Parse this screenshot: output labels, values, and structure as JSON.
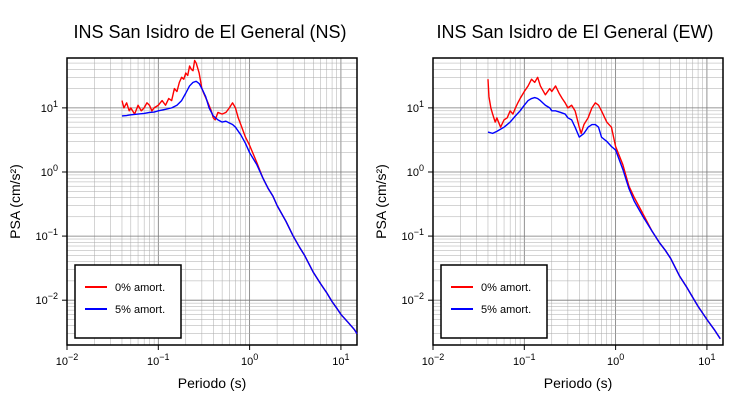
{
  "chart_data": [
    {
      "type": "line",
      "title": "INS San Isidro de El General (NS)",
      "xlabel": "Periodo (s)",
      "ylabel": "PSA (cm/s²)",
      "xscale": "log",
      "yscale": "log",
      "xlim": [
        0.01,
        15
      ],
      "ylim": [
        0.002,
        60
      ],
      "x_ticks": [
        0.01,
        0.1,
        1,
        10
      ],
      "y_ticks": [
        0.01,
        0.1,
        1,
        10
      ],
      "grid": true,
      "legend": "bottom-left",
      "series": [
        {
          "name": "0% amort.",
          "color": "#ff0000",
          "x": [
            0.04,
            0.042,
            0.045,
            0.048,
            0.05,
            0.055,
            0.06,
            0.065,
            0.07,
            0.075,
            0.08,
            0.085,
            0.09,
            0.1,
            0.11,
            0.12,
            0.13,
            0.14,
            0.15,
            0.16,
            0.17,
            0.18,
            0.19,
            0.2,
            0.21,
            0.22,
            0.23,
            0.24,
            0.25,
            0.26,
            0.28,
            0.3,
            0.32,
            0.35,
            0.38,
            0.4,
            0.42,
            0.45,
            0.5,
            0.55,
            0.6,
            0.65,
            0.7,
            0.75,
            0.8,
            0.9,
            1.0,
            1.2,
            1.4,
            1.6,
            1.8,
            2.0,
            2.5,
            3.0,
            3.5,
            4.0,
            5.0,
            6.0,
            7.0,
            8.0,
            9.0,
            10.0,
            12.0,
            14.0,
            15.0
          ],
          "values": [
            13,
            10,
            12,
            9,
            10,
            8,
            11,
            9,
            10,
            12,
            11,
            9,
            10,
            11,
            13,
            11,
            14,
            13,
            20,
            18,
            25,
            30,
            28,
            35,
            32,
            45,
            40,
            38,
            55,
            50,
            35,
            20,
            16,
            12,
            9,
            7,
            6.5,
            8.5,
            8,
            8.5,
            10,
            12,
            10,
            7,
            5.5,
            3.5,
            2.6,
            1.4,
            0.8,
            0.55,
            0.42,
            0.3,
            0.17,
            0.1,
            0.068,
            0.05,
            0.027,
            0.018,
            0.013,
            0.0095,
            0.0075,
            0.006,
            0.0045,
            0.0035,
            0.003
          ]
        },
        {
          "name": "5% amort.",
          "color": "#0000ff",
          "x": [
            0.04,
            0.045,
            0.05,
            0.06,
            0.07,
            0.08,
            0.09,
            0.1,
            0.12,
            0.14,
            0.16,
            0.18,
            0.2,
            0.22,
            0.24,
            0.26,
            0.28,
            0.3,
            0.33,
            0.36,
            0.4,
            0.45,
            0.5,
            0.55,
            0.6,
            0.65,
            0.7,
            0.8,
            0.9,
            1.0,
            1.2,
            1.4,
            1.6,
            1.8,
            2.0,
            2.5,
            3.0,
            3.5,
            4.0,
            5.0,
            6.0,
            7.0,
            8.0,
            9.0,
            10.0,
            12.0,
            14.0,
            15.0
          ],
          "values": [
            7.5,
            7.6,
            7.8,
            8,
            8.2,
            8.5,
            8.6,
            9,
            9.5,
            10,
            11,
            13,
            17,
            22,
            25,
            26,
            24,
            20,
            15,
            10,
            7.5,
            6.5,
            6,
            6.2,
            5.8,
            5.5,
            5,
            3.8,
            2.8,
            2.0,
            1.3,
            0.8,
            0.55,
            0.42,
            0.3,
            0.17,
            0.1,
            0.068,
            0.05,
            0.027,
            0.018,
            0.013,
            0.0095,
            0.0075,
            0.006,
            0.0045,
            0.0035,
            0.003
          ]
        }
      ]
    },
    {
      "type": "line",
      "title": "INS San Isidro de El General (EW)",
      "xlabel": "Periodo (s)",
      "ylabel": "PSA (cm/s²)",
      "xscale": "log",
      "yscale": "log",
      "xlim": [
        0.01,
        15
      ],
      "ylim": [
        0.002,
        60
      ],
      "x_ticks": [
        0.01,
        0.1,
        1,
        10
      ],
      "y_ticks": [
        0.01,
        0.1,
        1,
        10
      ],
      "grid": true,
      "legend": "bottom-left",
      "series": [
        {
          "name": "0% amort.",
          "color": "#ff0000",
          "x": [
            0.04,
            0.041,
            0.043,
            0.045,
            0.048,
            0.05,
            0.055,
            0.06,
            0.065,
            0.07,
            0.075,
            0.08,
            0.085,
            0.09,
            0.1,
            0.11,
            0.12,
            0.13,
            0.14,
            0.15,
            0.17,
            0.19,
            0.2,
            0.22,
            0.24,
            0.26,
            0.28,
            0.3,
            0.33,
            0.36,
            0.4,
            0.42,
            0.45,
            0.5,
            0.55,
            0.6,
            0.65,
            0.7,
            0.8,
            0.9,
            1.0,
            1.2,
            1.4,
            1.6,
            2.0,
            2.5,
            3.0,
            3.5,
            4.0,
            5.0,
            6.0,
            7.0,
            8.0,
            10.0,
            12.0,
            14.0
          ],
          "values": [
            28,
            15,
            10,
            8,
            6,
            7,
            5,
            6.5,
            7,
            9,
            8,
            10,
            12,
            14,
            18,
            22,
            28,
            25,
            30,
            22,
            16,
            20,
            18,
            22,
            17,
            14,
            12,
            10,
            11,
            9,
            5,
            4,
            5.5,
            7,
            10,
            12,
            11,
            9,
            6,
            5,
            2.5,
            1.3,
            0.6,
            0.4,
            0.22,
            0.12,
            0.08,
            0.06,
            0.045,
            0.024,
            0.016,
            0.011,
            0.008,
            0.005,
            0.0035,
            0.0025
          ]
        },
        {
          "name": "5% amort.",
          "color": "#0000ff",
          "x": [
            0.04,
            0.045,
            0.05,
            0.06,
            0.07,
            0.08,
            0.09,
            0.1,
            0.11,
            0.12,
            0.13,
            0.14,
            0.15,
            0.17,
            0.19,
            0.2,
            0.22,
            0.25,
            0.28,
            0.3,
            0.33,
            0.36,
            0.4,
            0.45,
            0.5,
            0.55,
            0.6,
            0.65,
            0.7,
            0.8,
            0.9,
            1.0,
            1.2,
            1.4,
            1.6,
            2.0,
            2.5,
            3.0,
            3.5,
            4.0,
            5.0,
            6.0,
            7.0,
            8.0,
            10.0,
            12.0,
            14.0
          ],
          "values": [
            4.2,
            4.0,
            4.3,
            5,
            6,
            7.5,
            9,
            11,
            13,
            14,
            14.5,
            14,
            13,
            11,
            10,
            9,
            9,
            8.5,
            8,
            7,
            6.5,
            5,
            3.5,
            4,
            5,
            5.5,
            5.5,
            5,
            3.5,
            3,
            2.5,
            2.2,
            1.1,
            0.55,
            0.35,
            0.2,
            0.12,
            0.08,
            0.06,
            0.045,
            0.024,
            0.016,
            0.011,
            0.008,
            0.005,
            0.0035,
            0.0025
          ]
        }
      ]
    }
  ]
}
